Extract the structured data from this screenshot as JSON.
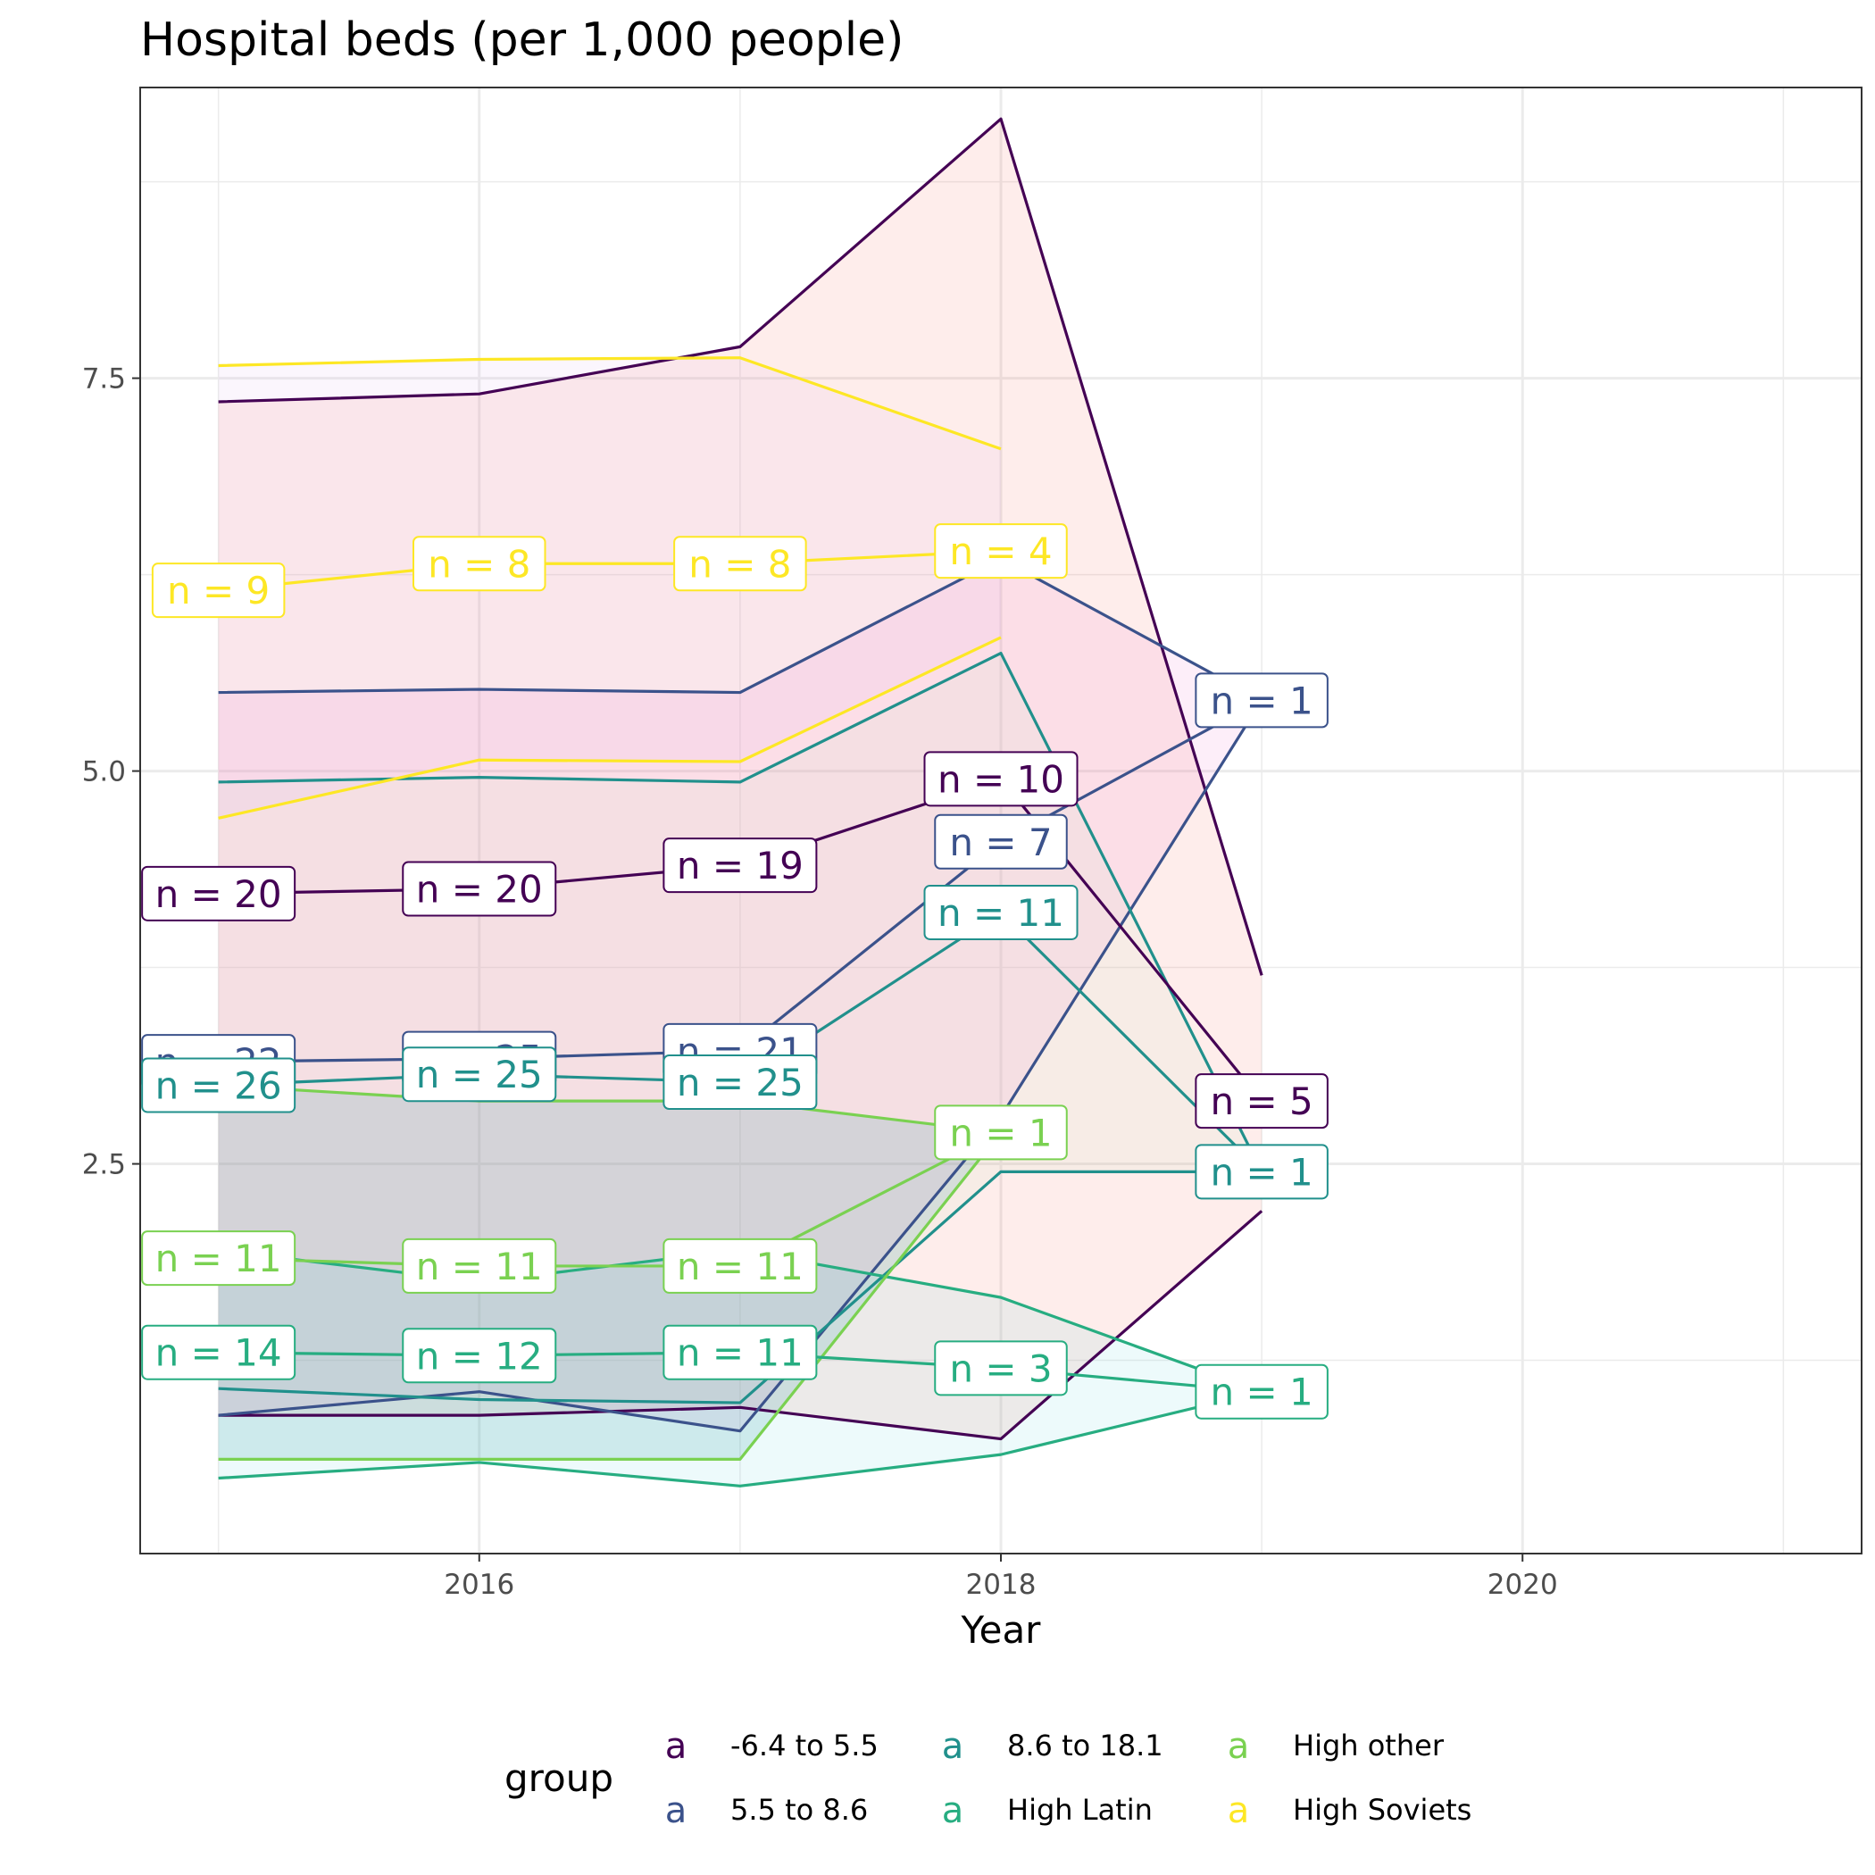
{
  "chart_data": {
    "type": "line",
    "title": "Hospital beds (per 1,000 people)",
    "xlabel": "Year",
    "ylabel": "",
    "xlim": [
      2014.7,
      2021.3
    ],
    "ylim": [
      0.02,
      9.35
    ],
    "x_ticks": [
      2016,
      2018,
      2020
    ],
    "y_ticks": [
      2.5,
      5.0,
      7.5
    ],
    "x_tick_labels": [
      "2016",
      "2018",
      "2020"
    ],
    "y_tick_labels": [
      "2.5",
      "5.0",
      "7.5"
    ],
    "grid": true,
    "legend_position": "bottom",
    "legend_title": "group",
    "legend_key_glyph": "a",
    "series": [
      {
        "name": "-6.4 to 5.5",
        "color": "#440154",
        "fill": "#fa8072",
        "x": [
          2015,
          2016,
          2017,
          2018,
          2019
        ],
        "mean": [
          4.22,
          4.25,
          4.4,
          4.95,
          2.9
        ],
        "upper": [
          7.35,
          7.4,
          7.7,
          9.15,
          3.7
        ],
        "lower": [
          0.9,
          0.9,
          0.95,
          0.75,
          2.2
        ],
        "n_labels": [
          "n = 20",
          "n = 20",
          "n = 19",
          "n = 10",
          "n = 5"
        ]
      },
      {
        "name": "5.5 to 8.6",
        "color": "#3b528b",
        "fill": "#f08ad6",
        "x": [
          2015,
          2016,
          2017,
          2018,
          2019
        ],
        "mean": [
          3.15,
          3.17,
          3.22,
          4.55,
          5.45
        ],
        "upper": [
          5.5,
          5.52,
          5.5,
          6.35,
          5.45
        ],
        "lower": [
          0.9,
          1.05,
          0.8,
          2.8,
          5.45
        ],
        "n_labels": [
          "n = 22",
          "n = 25",
          "n = 21",
          "n = 7",
          "n = 1"
        ]
      },
      {
        "name": "8.6 to 18.1",
        "color": "#21908c",
        "fill": "#cfe9cc",
        "x": [
          2015,
          2016,
          2017,
          2018,
          2019
        ],
        "mean": [
          3.0,
          3.07,
          3.02,
          4.1,
          2.45
        ],
        "upper": [
          4.93,
          4.96,
          4.93,
          5.75,
          2.45
        ],
        "lower": [
          1.07,
          1.0,
          0.98,
          2.45,
          2.45
        ],
        "n_labels": [
          "n = 26",
          "n = 25",
          "n = 25",
          "n = 11",
          "n = 1"
        ]
      },
      {
        "name": "High Latin",
        "color": "#27ad81",
        "fill": "#7fdde6",
        "x": [
          2015,
          2016,
          2017,
          2018,
          2019
        ],
        "mean": [
          1.3,
          1.28,
          1.3,
          1.2,
          1.05
        ],
        "upper": [
          1.95,
          1.75,
          1.95,
          1.65,
          1.05
        ],
        "lower": [
          0.5,
          0.6,
          0.45,
          0.65,
          1.05
        ],
        "n_labels": [
          "n = 14",
          "n = 12",
          "n = 11",
          "n = 3",
          "n = 1"
        ]
      },
      {
        "name": "High other",
        "color": "#7ad151",
        "fill": "#0e8c92",
        "x": [
          2015,
          2016,
          2017,
          2018
        ],
        "mean": [
          1.9,
          1.85,
          1.85,
          2.7
        ],
        "upper": [
          3.0,
          2.9,
          2.9,
          2.7
        ],
        "lower": [
          0.62,
          0.62,
          0.62,
          2.7
        ],
        "n_labels": [
          "n = 11",
          "n = 11",
          "n = 11",
          "n = 1"
        ]
      },
      {
        "name": "High Soviets",
        "color": "#fde725",
        "fill": "#e6c0f2",
        "x": [
          2015,
          2016,
          2017,
          2018
        ],
        "mean": [
          6.15,
          6.32,
          6.32,
          6.4
        ],
        "upper": [
          7.58,
          7.62,
          7.63,
          7.05
        ],
        "lower": [
          4.7,
          5.07,
          5.06,
          5.85
        ],
        "n_labels": [
          "n = 9",
          "n = 8",
          "n = 8",
          "n = 4"
        ]
      }
    ]
  }
}
